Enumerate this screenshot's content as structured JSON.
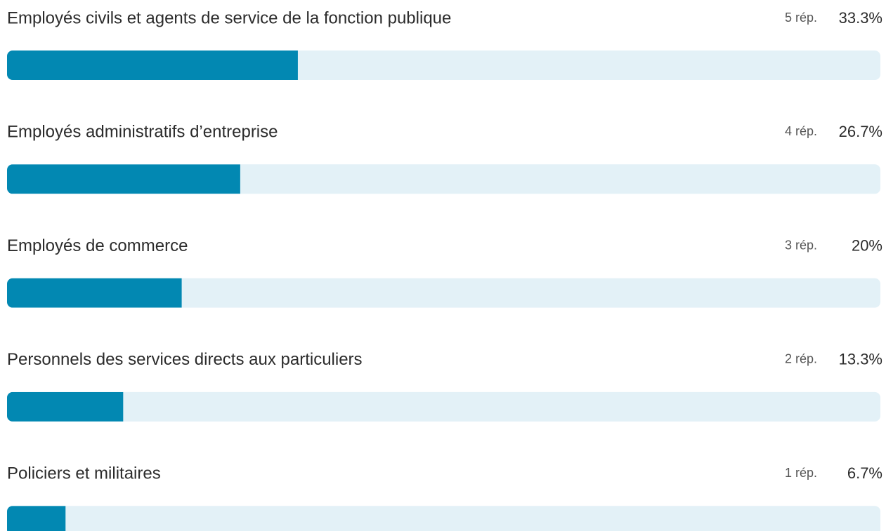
{
  "chart_data": {
    "type": "bar",
    "orientation": "horizontal",
    "categories": [
      "Employés civils et agents de service de la fonction publique",
      "Employés administratifs d’entreprise",
      "Employés de commerce",
      "Personnels des services directs aux particuliers",
      "Policiers et militaires"
    ],
    "responses": [
      5,
      4,
      3,
      2,
      1
    ],
    "response_labels": [
      "5 rép.",
      "4 rép.",
      "3 rép.",
      "2 rép.",
      "1 rép."
    ],
    "values": [
      33.3,
      26.7,
      20,
      13.3,
      6.7
    ],
    "value_labels": [
      "33.3%",
      "26.7%",
      "20%",
      "13.3%",
      "6.7%"
    ],
    "color": "#0288b2",
    "track_color": "#e3f1f7",
    "xlim": [
      0,
      100
    ]
  }
}
